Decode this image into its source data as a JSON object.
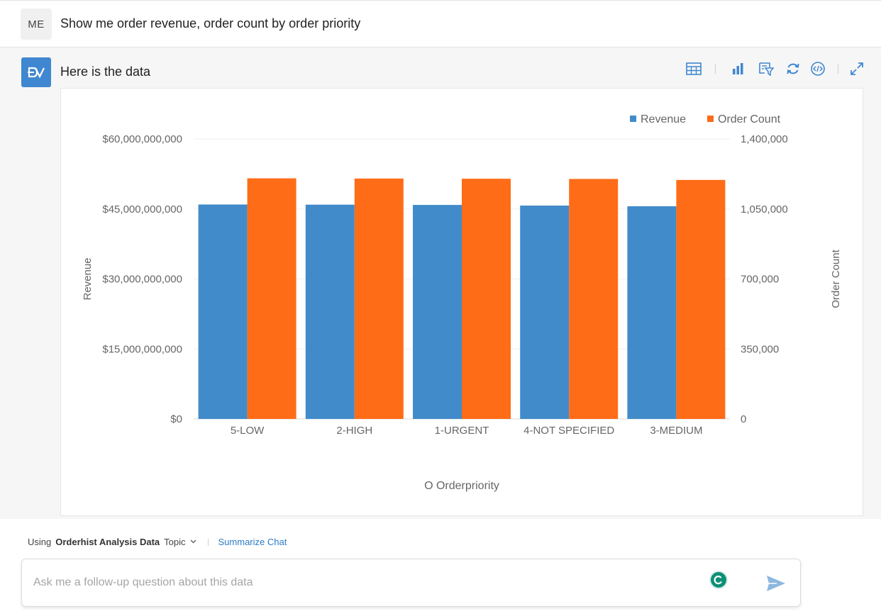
{
  "user": {
    "avatar_initials": "ME",
    "question": "Show me order revenue, order count by order priority"
  },
  "answer": {
    "avatar_label": "DV",
    "title": "Here is the data",
    "toolbar": [
      "table-view-icon",
      "bar-chart-icon",
      "filter-icon",
      "refresh-icon",
      "code-icon",
      "expand-icon"
    ]
  },
  "chart_data": {
    "type": "bar",
    "categories": [
      "5-LOW",
      "2-HIGH",
      "1-URGENT",
      "4-NOT SPECIFIED",
      "3-MEDIUM"
    ],
    "series": [
      {
        "name": "Revenue",
        "axis": "left",
        "color": "#428bca",
        "values": [
          45950000000,
          45920000000,
          45860000000,
          45720000000,
          45580000000
        ]
      },
      {
        "name": "Order Count",
        "axis": "right",
        "color": "#ff6c17",
        "values": [
          1203000,
          1202000,
          1201000,
          1200000,
          1195000
        ]
      }
    ],
    "xlabel": "O Orderpriority",
    "ylabel": "Revenue",
    "y2label": "Order Count",
    "ylim": [
      0,
      60000000000
    ],
    "y2lim": [
      0,
      1400000
    ],
    "yticks": [
      "$0",
      "$15,000,000,000",
      "$30,000,000,000",
      "$45,000,000,000",
      "$60,000,000,000"
    ],
    "y2ticks": [
      "0",
      "350,000",
      "700,000",
      "1,050,000",
      "1,400,000"
    ],
    "legend_position": "top-right",
    "grid": true
  },
  "footer": {
    "using_prefix": "Using",
    "topic_name": "Orderhist Analysis Data",
    "topic_suffix": "Topic",
    "summarize_link": "Summarize Chat",
    "input_placeholder": "Ask me a follow-up question about this data",
    "input_value": ""
  }
}
